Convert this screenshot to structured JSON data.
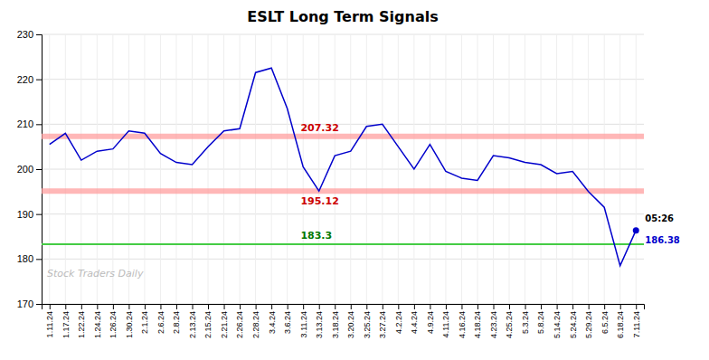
{
  "chart_data": {
    "type": "line",
    "title": "ESLT Long Term Signals",
    "categories": [
      "1.11.24",
      "1.17.24",
      "1.22.24",
      "1.24.24",
      "1.26.24",
      "1.30.24",
      "2.1.24",
      "2.6.24",
      "2.8.24",
      "2.13.24",
      "2.15.24",
      "2.21.24",
      "2.26.24",
      "2.28.24",
      "3.4.24",
      "3.6.24",
      "3.11.24",
      "3.13.24",
      "3.18.24",
      "3.20.24",
      "3.25.24",
      "3.27.24",
      "4.2.24",
      "4.4.24",
      "4.9.24",
      "4.11.24",
      "4.16.24",
      "4.18.24",
      "4.23.24",
      "4.25.24",
      "5.3.24",
      "5.8.24",
      "5.14.24",
      "5.24.24",
      "5.29.24",
      "6.5.24",
      "6.18.24",
      "7.11.24"
    ],
    "values": [
      205.5,
      208.0,
      202.0,
      204.0,
      204.5,
      208.5,
      208.0,
      203.5,
      201.5,
      201.0,
      205.0,
      208.5,
      209.0,
      221.5,
      222.5,
      213.5,
      200.5,
      195.12,
      203.0,
      204.0,
      209.5,
      210.0,
      205.0,
      200.0,
      205.5,
      199.5,
      198.0,
      197.5,
      203.0,
      202.5,
      201.5,
      201.0,
      199.0,
      199.5,
      195.0,
      191.5,
      178.5,
      186.38
    ],
    "color": "#0000cc",
    "ylim": [
      170,
      230
    ],
    "yticks": [
      170,
      180,
      190,
      200,
      210,
      220,
      230
    ],
    "grid": true,
    "hlines": [
      {
        "value": 207.32,
        "color": "#ff9999",
        "label": "207.32",
        "label_color": "#cc0000",
        "label_side": "above"
      },
      {
        "value": 195.12,
        "color": "#ff9999",
        "label": "195.12",
        "label_color": "#cc0000",
        "label_side": "below"
      },
      {
        "value": 183.3,
        "color": "#44cc44",
        "label": "183.3",
        "label_color": "#007700",
        "label_side": "above"
      }
    ],
    "last_point": {
      "marker": "circle",
      "color": "#0000cc",
      "labels": [
        {
          "text": "05:26",
          "color": "#000000"
        },
        {
          "text": "186.38",
          "color": "#0000cc"
        }
      ]
    },
    "watermark": "Stock Traders Daily"
  }
}
